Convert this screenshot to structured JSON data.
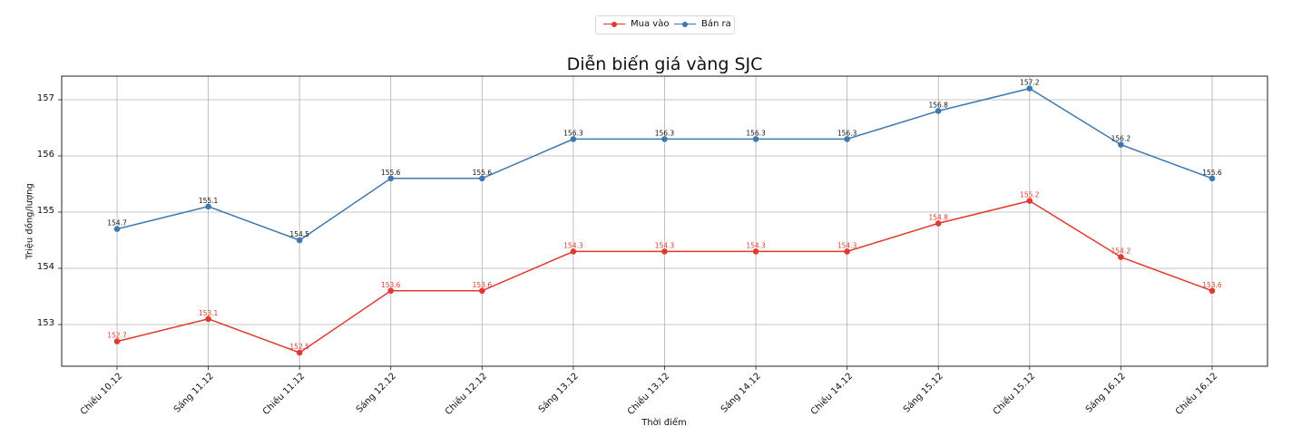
{
  "legend": {
    "items": [
      {
        "label": "Mua vào",
        "color": "#e03a2f"
      },
      {
        "label": "Bán ra",
        "color": "#3d78b0"
      }
    ]
  },
  "chart_data": {
    "type": "line",
    "title": "Diễn biến giá vàng SJC",
    "xlabel": "Thời điểm",
    "ylabel": "Triệu đồng/lượng",
    "categories": [
      "Chiều 10.12",
      "Sáng 11.12",
      "Chiều 11.12",
      "Sáng 12.12",
      "Chiều 12.12",
      "Sáng 13.12",
      "Chiều 13.12",
      "Sáng 14.12",
      "Chiều 14.12",
      "Sáng 15.12",
      "Chiều 15.12",
      "Sáng 16.12",
      "Chiều 16.12"
    ],
    "series": [
      {
        "name": "Mua vào",
        "color": "#e03a2f",
        "values": [
          152.7,
          153.1,
          152.5,
          153.6,
          153.6,
          154.3,
          154.3,
          154.3,
          154.3,
          154.8,
          155.2,
          154.2,
          153.6
        ]
      },
      {
        "name": "Bán ra",
        "color": "#3d78b0",
        "values": [
          154.7,
          155.1,
          154.5,
          155.6,
          155.6,
          156.3,
          156.3,
          156.3,
          156.3,
          156.8,
          157.2,
          156.2,
          155.6
        ]
      }
    ],
    "yticks": [
      153,
      154,
      155,
      156,
      157
    ],
    "ylim": [
      152.27,
      157.42
    ],
    "grid": true,
    "legend_position": "top center (outside)",
    "data_labels": true
  }
}
